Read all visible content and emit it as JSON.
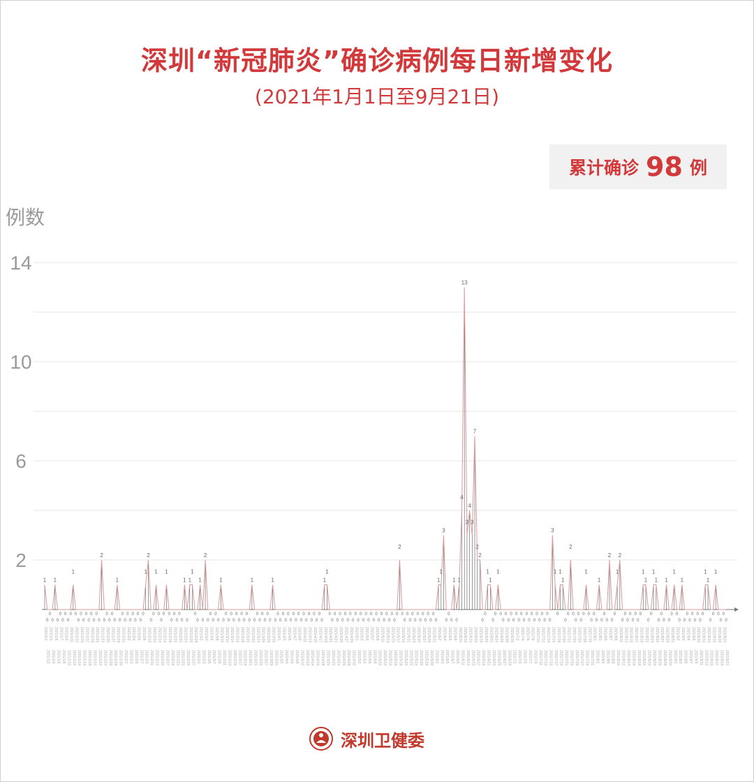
{
  "title": "深圳“新冠肺炎”确诊病例每日新增变化",
  "subtitle": "(2021年1月1日至9月21日)",
  "badge": {
    "label": "累计确诊",
    "value": "98",
    "unit": "例"
  },
  "footer": {
    "org": "深圳卫健委",
    "logo_icon": "health-commission-emblem"
  },
  "colors": {
    "title": "#d1393b",
    "line": "#d99a9a",
    "drop": "#555555",
    "grid": "#e6e6e6",
    "axis_text": "#9a9a9a"
  },
  "chart_data": {
    "type": "line",
    "title": "深圳“新冠肺炎”确诊病例每日新增变化",
    "ylabel": "例数",
    "xlabel": "",
    "x_range": [
      "2021-01-01",
      "2021-09-21"
    ],
    "ylim": [
      0,
      14
    ],
    "yticks": [
      2,
      6,
      10,
      14
    ],
    "grid": true,
    "default_value": 0,
    "nonzero_values": {
      "2021-01-01": 1,
      "2021-01-05": 1,
      "2021-01-12": 1,
      "2021-01-23": 2,
      "2021-01-29": 1,
      "2021-02-09": 1,
      "2021-02-10": 2,
      "2021-02-13": 1,
      "2021-02-17": 1,
      "2021-02-24": 1,
      "2021-02-26": 1,
      "2021-02-27": 1,
      "2021-03-02": 1,
      "2021-03-04": 2,
      "2021-03-10": 1,
      "2021-03-22": 1,
      "2021-03-30": 1,
      "2021-04-19": 1,
      "2021-04-20": 1,
      "2021-05-18": 2,
      "2021-06-02": 1,
      "2021-06-03": 1,
      "2021-06-04": 3,
      "2021-06-08": 1,
      "2021-06-10": 1,
      "2021-06-11": 4,
      "2021-06-12": 13,
      "2021-06-13": 3,
      "2021-06-14": 4,
      "2021-06-15": 3,
      "2021-06-16": 7,
      "2021-06-17": 2,
      "2021-06-18": 2,
      "2021-06-21": 1,
      "2021-06-22": 1,
      "2021-06-25": 1,
      "2021-07-16": 3,
      "2021-07-17": 1,
      "2021-07-19": 1,
      "2021-07-20": 1,
      "2021-07-23": 2,
      "2021-07-29": 1,
      "2021-08-03": 1,
      "2021-08-07": 2,
      "2021-08-10": 1,
      "2021-08-11": 2,
      "2021-08-20": 1,
      "2021-08-21": 1,
      "2021-08-24": 1,
      "2021-08-25": 1,
      "2021-08-29": 1,
      "2021-09-01": 1,
      "2021-09-04": 1,
      "2021-09-13": 1,
      "2021-09-14": 1,
      "2021-09-17": 1
    }
  }
}
